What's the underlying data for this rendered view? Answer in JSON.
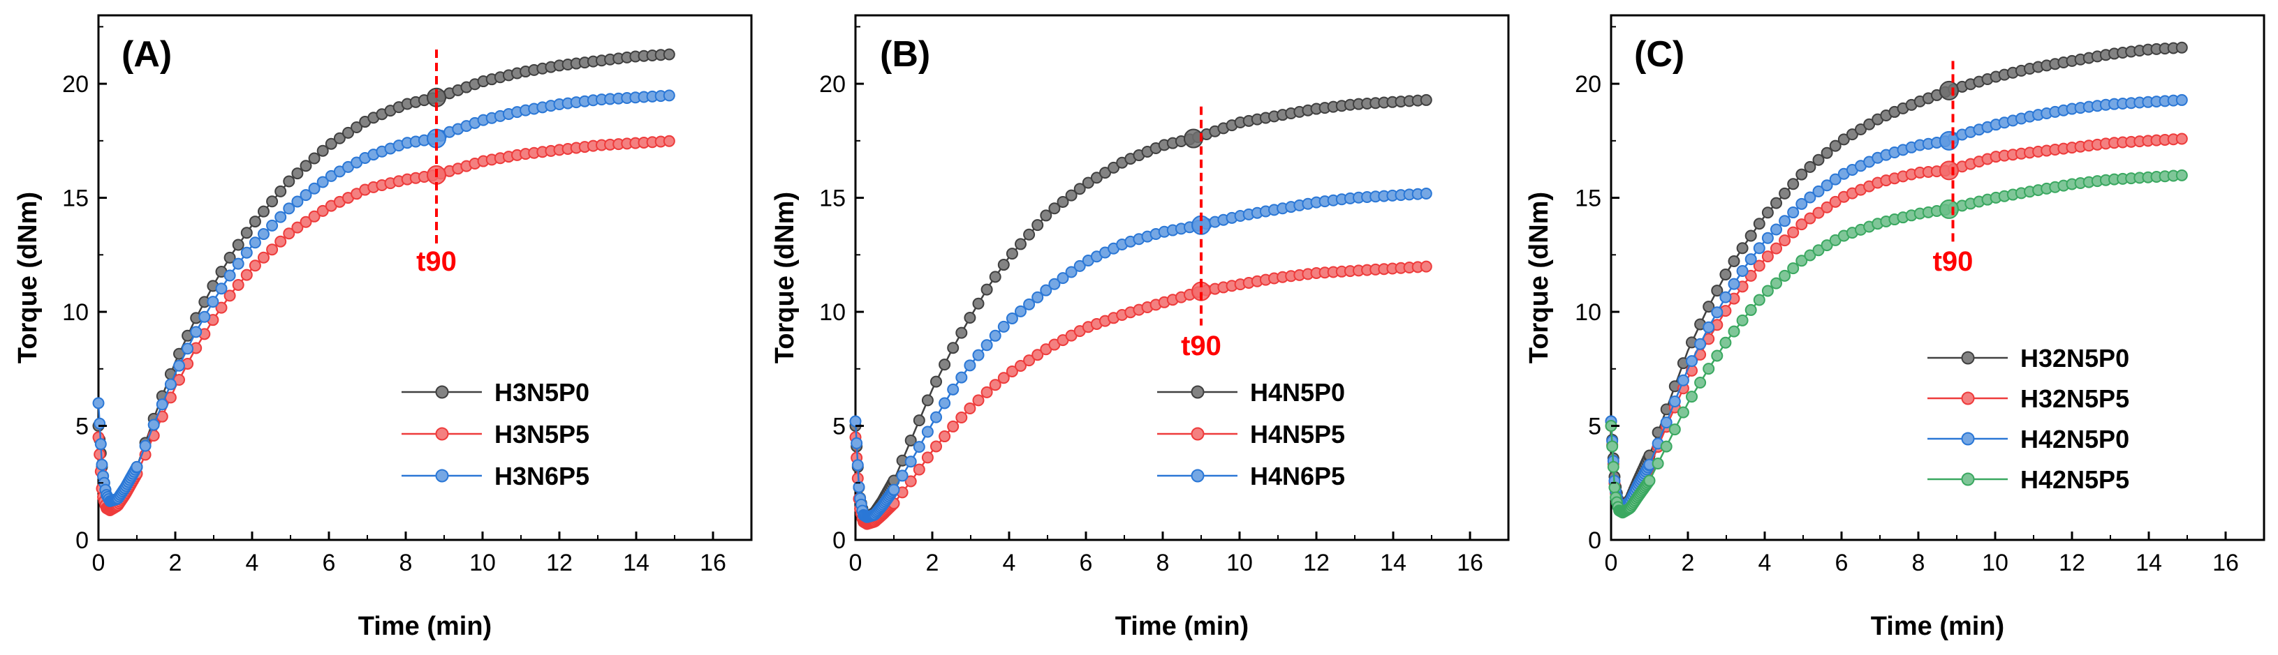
{
  "chart_data": [
    {
      "type": "line",
      "panel_label": "(A)",
      "xlabel": "Time (min)",
      "ylabel": "Torque (dNm)",
      "xlim": [
        0,
        17
      ],
      "ylim": [
        0,
        23
      ],
      "xticks": [
        0,
        2,
        4,
        6,
        8,
        10,
        12,
        14,
        16
      ],
      "yticks": [
        0,
        5,
        10,
        15,
        20
      ],
      "legend_position": "bottom-right",
      "annotation": {
        "text": "t90",
        "x": 8.8,
        "line_y": [
          13,
          21.5
        ],
        "text_y": 11.8
      },
      "series": [
        {
          "name": "H3N5P0",
          "color": "#404040",
          "t90_time": 8.8,
          "x": [
            0,
            0.1,
            0.2,
            0.3,
            0.5,
            0.7,
            1,
            1.5,
            2,
            2.5,
            3,
            3.5,
            4,
            5,
            6,
            7,
            8,
            8.8,
            9,
            10,
            11,
            12,
            13,
            14,
            15
          ],
          "y": [
            5.0,
            3.0,
            2.0,
            1.6,
            1.7,
            2.2,
            3.2,
            5.6,
            7.8,
            9.6,
            11.2,
            12.6,
            13.8,
            15.8,
            17.3,
            18.4,
            19.1,
            19.4,
            19.5,
            20.1,
            20.5,
            20.8,
            21.0,
            21.2,
            21.3
          ]
        },
        {
          "name": "H3N5P5",
          "color": "#ee3b3b",
          "t90_time": 8.8,
          "x": [
            0,
            0.1,
            0.2,
            0.3,
            0.5,
            0.7,
            1,
            1.5,
            2,
            2.5,
            3,
            3.5,
            4,
            5,
            6,
            7,
            8,
            8.8,
            9,
            10,
            11,
            12,
            13,
            14,
            15
          ],
          "y": [
            4.5,
            2.0,
            1.4,
            1.3,
            1.5,
            2.0,
            2.9,
            4.8,
            6.7,
            8.3,
            9.7,
            10.9,
            11.9,
            13.5,
            14.6,
            15.4,
            15.8,
            16.0,
            16.1,
            16.6,
            16.9,
            17.1,
            17.3,
            17.4,
            17.5
          ]
        },
        {
          "name": "H3N6P5",
          "color": "#2a77d6",
          "t90_time": 8.8,
          "x": [
            0,
            0.1,
            0.2,
            0.3,
            0.5,
            0.7,
            1,
            1.5,
            2,
            2.5,
            3,
            3.5,
            4,
            5,
            6,
            7,
            8,
            8.8,
            9,
            10,
            11,
            12,
            13,
            14,
            15
          ],
          "y": [
            6.0,
            3.0,
            2.0,
            1.7,
            1.8,
            2.3,
            3.2,
            5.3,
            7.3,
            9.0,
            10.5,
            11.8,
            12.9,
            14.6,
            15.9,
            16.8,
            17.4,
            17.6,
            17.8,
            18.4,
            18.8,
            19.1,
            19.3,
            19.4,
            19.5
          ]
        }
      ]
    },
    {
      "type": "line",
      "panel_label": "(B)",
      "xlabel": "Time (min)",
      "ylabel": "Torque (dNm)",
      "xlim": [
        0,
        17
      ],
      "ylim": [
        0,
        23
      ],
      "xticks": [
        0,
        2,
        4,
        6,
        8,
        10,
        12,
        14,
        16
      ],
      "yticks": [
        0,
        5,
        10,
        15,
        20
      ],
      "legend_position": "bottom-right",
      "annotation": {
        "text": "t90",
        "x": 9.0,
        "line_y": [
          9.4,
          19.0
        ],
        "text_y": 8.1
      },
      "series": [
        {
          "name": "H4N5P0",
          "color": "#404040",
          "t90_time": 8.8,
          "x": [
            0,
            0.1,
            0.2,
            0.3,
            0.5,
            0.7,
            1,
            1.5,
            2,
            2.5,
            3,
            3.5,
            4,
            5,
            6,
            7,
            8,
            8.8,
            9,
            10,
            11,
            12,
            13,
            14,
            15
          ],
          "y": [
            5.0,
            2.0,
            1.2,
            1.0,
            1.2,
            1.7,
            2.6,
            4.6,
            6.6,
            8.3,
            9.8,
            11.2,
            12.4,
            14.3,
            15.6,
            16.6,
            17.3,
            17.6,
            17.7,
            18.3,
            18.6,
            18.9,
            19.1,
            19.2,
            19.3
          ]
        },
        {
          "name": "H4N5P5",
          "color": "#ee3b3b",
          "t90_time": 9.0,
          "x": [
            0,
            0.1,
            0.2,
            0.3,
            0.5,
            0.7,
            1,
            1.5,
            2,
            2.5,
            3,
            3.5,
            4,
            5,
            6,
            7,
            8,
            9,
            10,
            11,
            12,
            13,
            14,
            15
          ],
          "y": [
            4.5,
            1.5,
            0.8,
            0.7,
            0.8,
            1.1,
            1.6,
            2.7,
            3.9,
            4.9,
            5.8,
            6.6,
            7.3,
            8.4,
            9.3,
            9.9,
            10.4,
            10.9,
            11.2,
            11.5,
            11.7,
            11.8,
            11.9,
            12.0
          ]
        },
        {
          "name": "H4N6P5",
          "color": "#2a77d6",
          "t90_time": 9.0,
          "x": [
            0,
            0.1,
            0.2,
            0.3,
            0.5,
            0.7,
            1,
            1.5,
            2,
            2.5,
            3,
            3.5,
            4,
            5,
            6,
            7,
            8,
            9,
            10,
            11,
            12,
            13,
            14,
            15
          ],
          "y": [
            5.2,
            2.0,
            1.1,
            1.0,
            1.1,
            1.5,
            2.2,
            3.6,
            5.1,
            6.5,
            7.7,
            8.7,
            9.6,
            11.0,
            12.2,
            13.0,
            13.5,
            13.8,
            14.2,
            14.5,
            14.8,
            15.0,
            15.1,
            15.2
          ]
        }
      ]
    },
    {
      "type": "line",
      "panel_label": "(C)",
      "xlabel": "Time (min)",
      "ylabel": "Torque (dNm)",
      "xlim": [
        0,
        17
      ],
      "ylim": [
        0,
        23
      ],
      "xticks": [
        0,
        2,
        4,
        6,
        8,
        10,
        12,
        14,
        16
      ],
      "yticks": [
        0,
        5,
        10,
        15,
        20
      ],
      "legend_position": "bottom-right",
      "annotation": {
        "text": "t90",
        "x": 8.9,
        "line_y": [
          12.9,
          21.0
        ],
        "text_y": 11.8
      },
      "series": [
        {
          "name": "H32N5P0",
          "color": "#404040",
          "t90_time": 8.8,
          "x": [
            0,
            0.1,
            0.2,
            0.3,
            0.5,
            0.7,
            1,
            1.5,
            2,
            2.5,
            3,
            3.5,
            4,
            5,
            6,
            7,
            8,
            8.8,
            9,
            10,
            11,
            12,
            13,
            14,
            15
          ],
          "y": [
            5.2,
            2.5,
            1.6,
            1.4,
            1.8,
            2.6,
            3.7,
            6.0,
            8.3,
            10.1,
            11.7,
            13.0,
            14.2,
            16.1,
            17.5,
            18.5,
            19.2,
            19.7,
            19.8,
            20.3,
            20.7,
            21.0,
            21.3,
            21.5,
            21.6
          ]
        },
        {
          "name": "H32N5P5",
          "color": "#ee3b3b",
          "t90_time": 8.8,
          "x": [
            0,
            0.1,
            0.2,
            0.3,
            0.5,
            0.7,
            1,
            1.5,
            2,
            2.5,
            3,
            3.5,
            4,
            5,
            6,
            7,
            8,
            8.8,
            9,
            10,
            11,
            12,
            13,
            14,
            15
          ],
          "y": [
            5.0,
            2.2,
            1.5,
            1.4,
            1.7,
            2.3,
            3.2,
            5.2,
            7.1,
            8.7,
            10.1,
            11.3,
            12.3,
            13.9,
            15.0,
            15.7,
            16.1,
            16.2,
            16.3,
            16.8,
            17.0,
            17.2,
            17.4,
            17.5,
            17.6
          ]
        },
        {
          "name": "H42N5P0",
          "color": "#2a77d6",
          "t90_time": 8.8,
          "x": [
            0,
            0.1,
            0.2,
            0.3,
            0.5,
            0.7,
            1,
            1.5,
            2,
            2.5,
            3,
            3.5,
            4,
            5,
            6,
            7,
            8,
            8.8,
            9,
            10,
            11,
            12,
            13,
            14,
            15
          ],
          "y": [
            5.2,
            2.3,
            1.5,
            1.4,
            1.7,
            2.4,
            3.3,
            5.4,
            7.5,
            9.2,
            10.7,
            12.0,
            13.1,
            14.8,
            16.0,
            16.8,
            17.3,
            17.5,
            17.7,
            18.2,
            18.6,
            18.9,
            19.1,
            19.2,
            19.3
          ]
        },
        {
          "name": "H42N5P5",
          "color": "#3aa860",
          "t90_time": 8.8,
          "x": [
            0,
            0.1,
            0.2,
            0.3,
            0.5,
            0.7,
            1,
            1.5,
            2,
            2.5,
            3,
            3.5,
            4,
            5,
            6,
            7,
            8,
            8.8,
            9,
            10,
            11,
            12,
            13,
            14,
            15
          ],
          "y": [
            5.0,
            2.0,
            1.3,
            1.2,
            1.4,
            1.9,
            2.6,
            4.3,
            6.0,
            7.4,
            8.7,
            9.8,
            10.8,
            12.3,
            13.3,
            13.9,
            14.3,
            14.5,
            14.6,
            15.0,
            15.3,
            15.6,
            15.8,
            15.9,
            16.0
          ]
        }
      ]
    }
  ]
}
